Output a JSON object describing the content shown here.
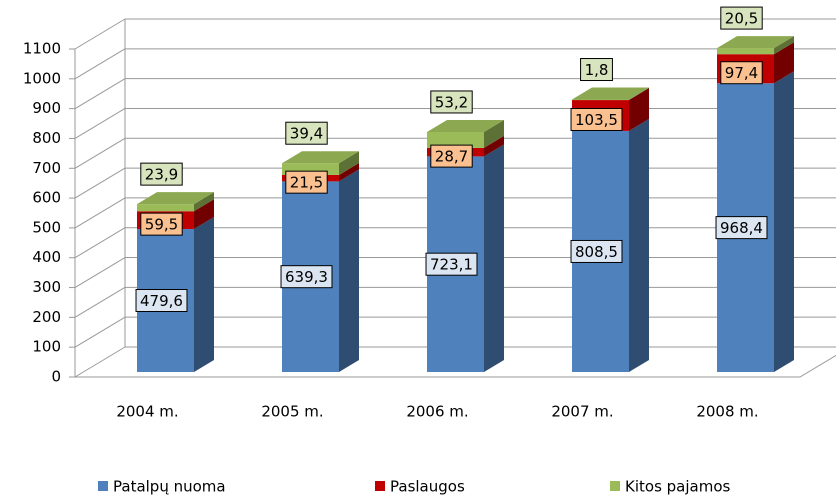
{
  "chart_data": {
    "type": "bar3d_stacked",
    "categories": [
      "2004 m.",
      "2005 m.",
      "2006 m.",
      "2007 m.",
      "2008 m."
    ],
    "series": [
      {
        "name": "Patalpų nuoma",
        "color": "#4f81bd",
        "label_fill": "#dce6f2",
        "values": [
          479.6,
          639.3,
          723.1,
          808.5,
          968.4
        ],
        "value_labels": [
          "479,6",
          "639,3",
          "723,1",
          "808,5",
          "968,4"
        ]
      },
      {
        "name": "Paslaugos",
        "color": "#c00000",
        "label_fill": "#fac090",
        "values": [
          59.5,
          21.5,
          28.7,
          103.5,
          97.4
        ],
        "value_labels": [
          "59,5",
          "21,5",
          "28,7",
          "103,5",
          "97,4"
        ]
      },
      {
        "name": "Kitos pajamos",
        "color": "#9bbb59",
        "label_fill": "#d7e4bd",
        "values": [
          23.9,
          39.4,
          53.2,
          1.8,
          20.5
        ],
        "value_labels": [
          "23,9",
          "39,4",
          "53,2",
          "1,8",
          "20,5"
        ]
      }
    ],
    "ylim": [
      0,
      1100
    ],
    "yticks": [
      0,
      100,
      200,
      300,
      400,
      500,
      600,
      700,
      800,
      900,
      1000,
      1100
    ],
    "grid": true
  }
}
